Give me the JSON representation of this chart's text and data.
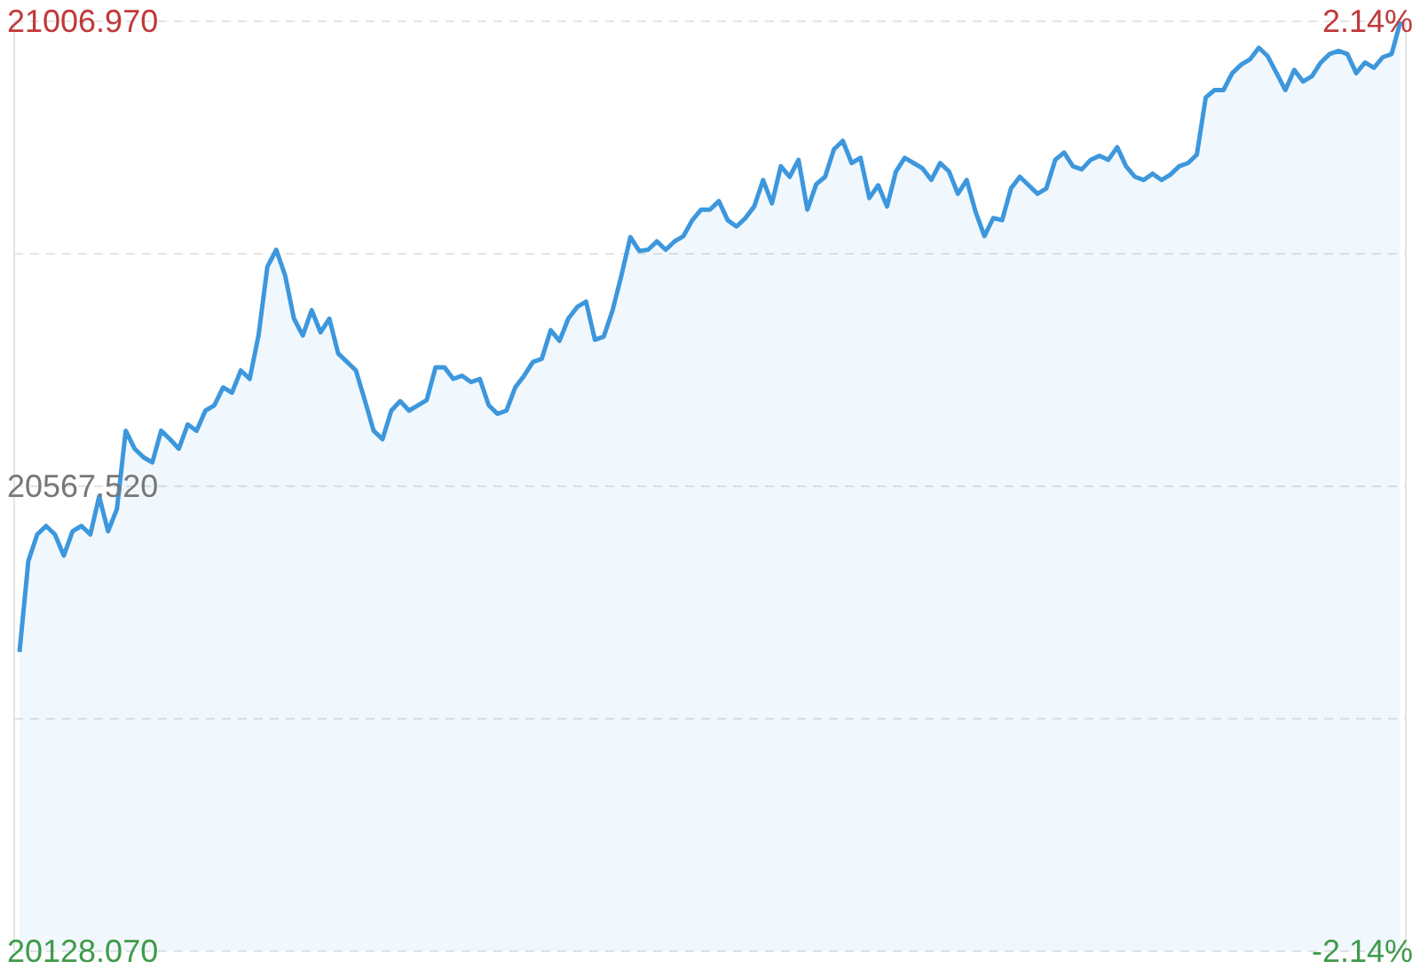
{
  "chart_data": {
    "type": "area",
    "categories": [
      null,
      null,
      null,
      null,
      null,
      null,
      null,
      null,
      null,
      null,
      null,
      null,
      null,
      null,
      null,
      null,
      null,
      null,
      null,
      null,
      null,
      null,
      null,
      null,
      null,
      null,
      null,
      null,
      null,
      null,
      null,
      null,
      null,
      null,
      null,
      null,
      null,
      null,
      null,
      null,
      null,
      null,
      null,
      null,
      null,
      null,
      null,
      null,
      null,
      null,
      null,
      null,
      null,
      null,
      null,
      null,
      null,
      null,
      null,
      null,
      null,
      null,
      null,
      null,
      null,
      null,
      null,
      null,
      null,
      null,
      null,
      null,
      null,
      null,
      null,
      null,
      null,
      null,
      null,
      null,
      null,
      null,
      null,
      null,
      null,
      null,
      null,
      null,
      null,
      null,
      null,
      null,
      null,
      null,
      null,
      null,
      null,
      null,
      null,
      null,
      null,
      null,
      null,
      null,
      null,
      null,
      null,
      null,
      null,
      null,
      null,
      null,
      null,
      null,
      null,
      null,
      null,
      null,
      null,
      null,
      null,
      null,
      null,
      null,
      null,
      null,
      null,
      null,
      null,
      null,
      null,
      null,
      null,
      null,
      null,
      null,
      null,
      null,
      null,
      null,
      null,
      null,
      null,
      null,
      null,
      null,
      null,
      null,
      null,
      null,
      null,
      null,
      null,
      null,
      null,
      null,
      null
    ],
    "series": [
      {
        "color": "#3d97dd",
        "values": [
          20411,
          20497,
          20522,
          20530,
          20522,
          20502,
          20525,
          20530,
          20522,
          20558,
          20525,
          20546,
          20620,
          20603,
          20595,
          20590,
          20620,
          20612,
          20603,
          20626,
          20620,
          20639,
          20644,
          20661,
          20656,
          20677,
          20669,
          20710,
          20775,
          20791,
          20767,
          20726,
          20710,
          20734,
          20713,
          20726,
          20693,
          20685,
          20677,
          20649,
          20620,
          20612,
          20639,
          20648,
          20639,
          20644,
          20649,
          20680,
          20680,
          20669,
          20672,
          20666,
          20669,
          20644,
          20636,
          20639,
          20661,
          20672,
          20685,
          20688,
          20715,
          20705,
          20726,
          20737,
          20742,
          20706,
          20709,
          20734,
          20767,
          20803,
          20790,
          20791,
          20799,
          20791,
          20799,
          20804,
          20819,
          20829,
          20829,
          20837,
          20819,
          20813,
          20821,
          20832,
          20857,
          20835,
          20870,
          20860,
          20876,
          20829,
          20853,
          20860,
          20886,
          20894,
          20873,
          20878,
          20840,
          20852,
          20832,
          20865,
          20878,
          20873,
          20868,
          20857,
          20873,
          20865,
          20844,
          20857,
          20827,
          20804,
          20821,
          20819,
          20849,
          20860,
          20852,
          20844,
          20849,
          20876,
          20883,
          20870,
          20867,
          20876,
          20880,
          20876,
          20888,
          20870,
          20860,
          20857,
          20863,
          20857,
          20862,
          20870,
          20873,
          20881,
          20935,
          20942,
          20942,
          20958,
          20966,
          20971,
          20982,
          20974,
          20958,
          20942,
          20961,
          20950,
          20955,
          20968,
          20976,
          20979,
          20976,
          20958,
          20968,
          20963,
          20973,
          20976,
          21006.97
        ]
      }
    ],
    "ylim": [
      20128.07,
      21006.97
    ],
    "yticks": [
      {
        "value": 20128.07,
        "label": "20128.070"
      },
      {
        "value": 20347.795,
        "label": null
      },
      {
        "value": 20567.52,
        "label": "20567.520"
      },
      {
        "value": 20787.245,
        "label": null
      },
      {
        "value": 21006.97,
        "label": "21006.970"
      }
    ],
    "y2lim": [
      -2.14,
      2.14
    ],
    "y2ticks": [
      {
        "value": -2.14,
        "label": "-2.14%"
      },
      {
        "value": 2.14,
        "label": "2.14%"
      }
    ],
    "tick_labels": "y",
    "grid": "y",
    "marker": "none"
  }
}
